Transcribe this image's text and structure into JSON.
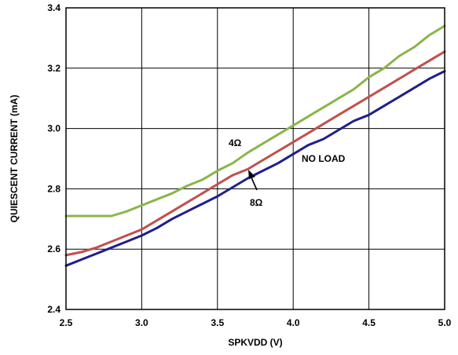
{
  "chart_data": {
    "type": "line",
    "xlabel": "SPKVDD (V)",
    "ylabel": "QUIESCENT CURRENT (mA)",
    "xlim": [
      2.5,
      5.0
    ],
    "ylim": [
      2.4,
      3.4
    ],
    "xticks": [
      "2.5",
      "3.0",
      "3.5",
      "4.0",
      "4.5",
      "5.0"
    ],
    "yticks": [
      "2.4",
      "2.6",
      "2.8",
      "3.0",
      "3.2",
      "3.4"
    ],
    "grid": true,
    "legend": "none",
    "series": [
      {
        "name": "4Ω",
        "color": "#8ab54a",
        "x": [
          2.5,
          2.6,
          2.7,
          2.8,
          2.9,
          3.0,
          3.1,
          3.2,
          3.3,
          3.4,
          3.5,
          3.6,
          3.7,
          3.8,
          3.9,
          4.0,
          4.1,
          4.2,
          4.3,
          4.4,
          4.5,
          4.6,
          4.7,
          4.8,
          4.9,
          5.0
        ],
        "y": [
          2.71,
          2.71,
          2.71,
          2.71,
          2.725,
          2.745,
          2.765,
          2.785,
          2.81,
          2.83,
          2.86,
          2.885,
          2.92,
          2.95,
          2.98,
          3.01,
          3.04,
          3.07,
          3.1,
          3.13,
          3.17,
          3.2,
          3.24,
          3.27,
          3.31,
          3.34
        ]
      },
      {
        "name": "8Ω",
        "color": "#c0504d",
        "x": [
          2.5,
          2.6,
          2.7,
          2.8,
          2.9,
          3.0,
          3.1,
          3.2,
          3.3,
          3.4,
          3.5,
          3.6,
          3.7,
          3.8,
          3.9,
          4.0,
          4.1,
          4.2,
          4.3,
          4.4,
          4.5,
          4.6,
          4.7,
          4.8,
          4.9,
          5.0
        ],
        "y": [
          2.58,
          2.59,
          2.605,
          2.625,
          2.645,
          2.665,
          2.695,
          2.725,
          2.755,
          2.785,
          2.815,
          2.845,
          2.865,
          2.895,
          2.925,
          2.955,
          2.985,
          3.015,
          3.045,
          3.075,
          3.105,
          3.135,
          3.165,
          3.195,
          3.225,
          3.255
        ]
      },
      {
        "name": "NO LOAD",
        "color": "#1f1f8a",
        "x": [
          2.5,
          2.6,
          2.7,
          2.8,
          2.9,
          3.0,
          3.1,
          3.2,
          3.3,
          3.4,
          3.5,
          3.6,
          3.7,
          3.8,
          3.9,
          4.0,
          4.1,
          4.2,
          4.3,
          4.4,
          4.5,
          4.6,
          4.7,
          4.8,
          4.9,
          5.0
        ],
        "y": [
          2.545,
          2.565,
          2.585,
          2.605,
          2.625,
          2.645,
          2.67,
          2.7,
          2.725,
          2.75,
          2.775,
          2.805,
          2.835,
          2.86,
          2.885,
          2.915,
          2.945,
          2.965,
          2.995,
          3.025,
          3.045,
          3.075,
          3.105,
          3.135,
          3.165,
          3.19
        ]
      }
    ],
    "annotations": [
      {
        "text": "4Ω",
        "series": "4Ω"
      },
      {
        "text": "8Ω",
        "series": "8Ω",
        "arrow": true
      },
      {
        "text": "NO LOAD",
        "series": "NO LOAD"
      }
    ]
  }
}
